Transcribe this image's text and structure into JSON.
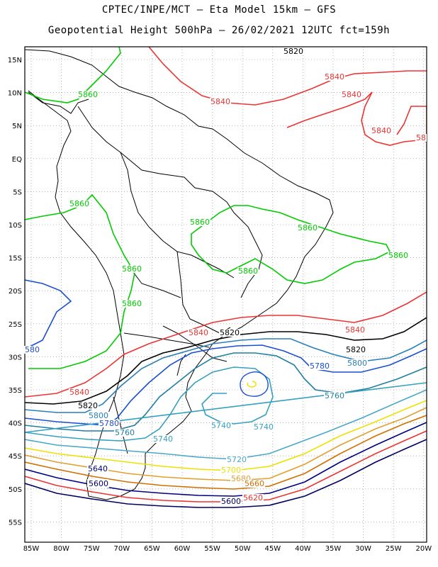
{
  "header": {
    "line1": "CPTEC/INPE/MCT –  Eta Model 15km – GFS",
    "line2": "Geopotential Height 500hPa – 26/02/2021 12UTC fct=159h"
  },
  "axes": {
    "lat_labels": [
      "15N",
      "10N",
      "5N",
      "EQ",
      "5S",
      "10S",
      "15S",
      "20S",
      "25S",
      "30S",
      "35S",
      "40S",
      "45S",
      "50S",
      "55S"
    ],
    "lon_labels": [
      "85W",
      "80W",
      "75W",
      "70W",
      "65W",
      "60W",
      "55W",
      "50W",
      "45W",
      "40W",
      "35W",
      "30W",
      "25W",
      "20W"
    ]
  },
  "contour_colors": {
    "5860": "#00cc00",
    "5840": "#ee3333",
    "5820": "#000000",
    "5800": "#2a7fb8",
    "5780": "#1a4fd0",
    "5760": "#1f7fa0",
    "5740": "#35a0c0",
    "5720": "#4aa8c8",
    "5700": "#f0e000",
    "5680": "#e0a030",
    "5660": "#d07000",
    "5620": "#ee3333",
    "5600": "#000060"
  },
  "contour_labels": [
    {
      "text": "5820",
      "color": "#000000"
    },
    {
      "text": "5840",
      "color": "#ee3333"
    },
    {
      "text": "5840",
      "color": "#ee3333"
    },
    {
      "text": "5840",
      "color": "#ee3333"
    },
    {
      "text": "5840",
      "color": "#ee3333"
    },
    {
      "text": "58",
      "color": "#ee3333"
    },
    {
      "text": "5860",
      "color": "#00cc00"
    },
    {
      "text": "5860",
      "color": "#00cc00"
    },
    {
      "text": "5860",
      "color": "#00cc00"
    },
    {
      "text": "5860",
      "color": "#00cc00"
    },
    {
      "text": "5860",
      "color": "#00cc00"
    },
    {
      "text": "5860",
      "color": "#00cc00"
    },
    {
      "text": "5860",
      "color": "#00cc00"
    },
    {
      "text": "5860",
      "color": "#00cc00"
    },
    {
      "text": "5840",
      "color": "#ee3333"
    },
    {
      "text": "5820",
      "color": "#000000"
    },
    {
      "text": "5840",
      "color": "#ee3333"
    },
    {
      "text": "5820",
      "color": "#000000"
    },
    {
      "text": "5800",
      "color": "#2a7fb8"
    },
    {
      "text": "5780",
      "color": "#1a4fd0"
    },
    {
      "text": "5760",
      "color": "#1f7fa0"
    },
    {
      "text": "580",
      "color": "#1a4fd0"
    },
    {
      "text": "5840",
      "color": "#ee3333"
    },
    {
      "text": "5820",
      "color": "#000000"
    },
    {
      "text": "5800",
      "color": "#2a7fb8"
    },
    {
      "text": "5780",
      "color": "#1a4fd0"
    },
    {
      "text": "5760",
      "color": "#1f7fa0"
    },
    {
      "text": "5740",
      "color": "#35a0c0"
    },
    {
      "text": "5740",
      "color": "#35a0c0"
    },
    {
      "text": "5740",
      "color": "#35a0c0"
    },
    {
      "text": "5720",
      "color": "#4aa8c8"
    },
    {
      "text": "5700",
      "color": "#f0e000"
    },
    {
      "text": "5680",
      "color": "#e0a030"
    },
    {
      "text": "5660",
      "color": "#d07000"
    },
    {
      "text": "5640",
      "color": "#000080"
    },
    {
      "text": "5620",
      "color": "#ee3333"
    },
    {
      "text": "5600",
      "color": "#000060"
    },
    {
      "text": "5640",
      "color": "#000080"
    },
    {
      "text": "5600",
      "color": "#000060"
    }
  ]
}
